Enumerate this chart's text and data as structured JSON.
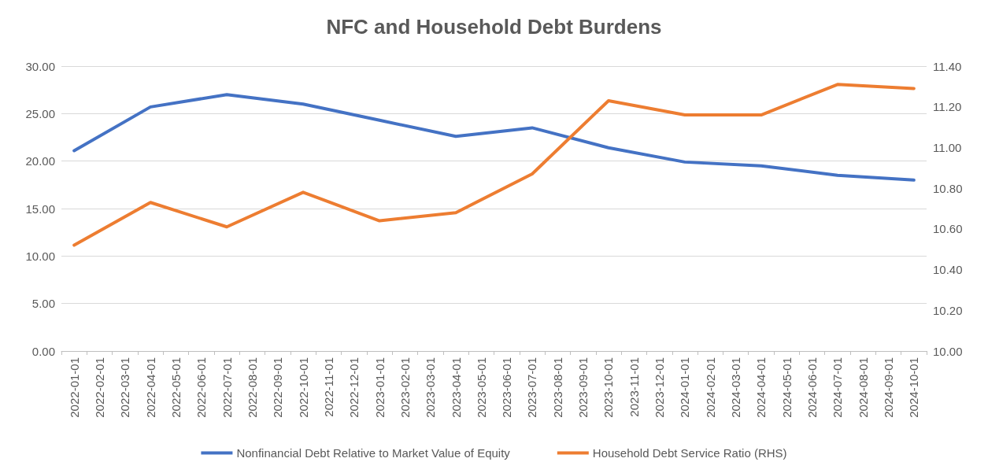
{
  "chart_data": {
    "type": "line",
    "title": "NFC and Household Debt Burdens",
    "categories": [
      "2022-01-01",
      "2022-02-01",
      "2022-03-01",
      "2022-04-01",
      "2022-05-01",
      "2022-06-01",
      "2022-07-01",
      "2022-08-01",
      "2022-09-01",
      "2022-10-01",
      "2022-11-01",
      "2022-12-01",
      "2023-01-01",
      "2023-02-01",
      "2023-03-01",
      "2023-04-01",
      "2023-05-01",
      "2023-06-01",
      "2023-07-01",
      "2023-08-01",
      "2023-09-01",
      "2023-10-01",
      "2023-11-01",
      "2023-12-01",
      "2024-01-01",
      "2024-02-01",
      "2024-03-01",
      "2024-04-01",
      "2024-05-01",
      "2024-06-01",
      "2024-07-01",
      "2024-08-01",
      "2024-09-01",
      "2024-10-01"
    ],
    "series": [
      {
        "name": "Nonfinancial Debt Relative to Market Value of Equity",
        "color": "#4472c4",
        "values": [
          21.1,
          null,
          null,
          25.7,
          null,
          null,
          27.0,
          null,
          null,
          26.0,
          null,
          null,
          24.3,
          null,
          null,
          22.6,
          null,
          null,
          23.5,
          null,
          null,
          21.4,
          null,
          null,
          19.9,
          null,
          null,
          19.5,
          null,
          null,
          18.5,
          null,
          null,
          18.0
        ]
      },
      {
        "name": "Household Debt Service Ratio (RHS)",
        "color": "#ed7d31",
        "axis": "y2",
        "values": [
          10.52,
          null,
          null,
          10.73,
          null,
          null,
          10.61,
          null,
          null,
          10.78,
          null,
          null,
          10.64,
          null,
          null,
          10.68,
          null,
          null,
          10.87,
          null,
          null,
          11.23,
          null,
          null,
          11.16,
          null,
          null,
          11.16,
          null,
          null,
          11.31,
          null,
          null,
          11.29
        ]
      }
    ],
    "ylim": [
      0,
      30
    ],
    "yticks": [
      {
        "value": 0,
        "label": "0.00"
      },
      {
        "value": 5,
        "label": "5.00"
      },
      {
        "value": 10,
        "label": "10.00"
      },
      {
        "value": 15,
        "label": "15.00"
      },
      {
        "value": 20,
        "label": "20.00"
      },
      {
        "value": 25,
        "label": "25.00"
      },
      {
        "value": 30,
        "label": "30.00"
      }
    ],
    "y2lim": [
      10,
      11.4
    ],
    "y2ticks": [
      {
        "value": 10,
        "label": "10.00"
      },
      {
        "value": 10.2,
        "label": "10.20"
      },
      {
        "value": 10.4,
        "label": "10.40"
      },
      {
        "value": 10.6,
        "label": "10.60"
      },
      {
        "value": 10.8,
        "label": "10.80"
      },
      {
        "value": 11,
        "label": "11.00"
      },
      {
        "value": 11.2,
        "label": "11.20"
      },
      {
        "value": 11.4,
        "label": "11.40"
      }
    ],
    "grid": "y",
    "legend": "bottom",
    "marker": "none",
    "line_style": "solid"
  }
}
